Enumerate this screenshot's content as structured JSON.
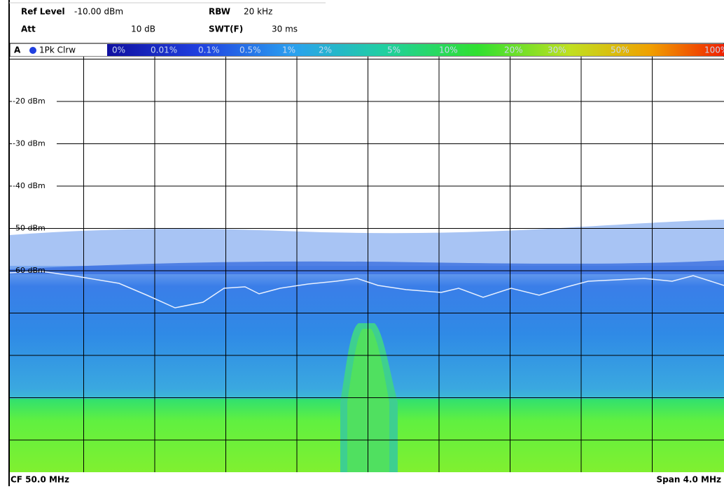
{
  "header": {
    "ref_level_label": "Ref Level",
    "ref_level_value": "-10.00 dBm",
    "rbw_label": "RBW",
    "rbw_value": "20 kHz",
    "att_label": "Att",
    "att_value": "10 dB",
    "swt_label": "SWT(F)",
    "swt_value": "30 ms"
  },
  "trace": {
    "window": "A",
    "mode": "1Pk Clrw"
  },
  "persistence_scale": [
    "0%",
    "0.01%",
    "0.1%",
    "0.5%",
    "1%",
    "2%",
    "5%",
    "10%",
    "20%",
    "30%",
    "50%",
    "100%"
  ],
  "y_axis_labels": [
    "-20 dBm",
    "-30 dBm",
    "-40 dBm",
    "-50 dBm",
    "-60 dBm"
  ],
  "footer": {
    "center_frequency": "CF 50.0 MHz",
    "span": "Span 4.0 MHz"
  }
}
